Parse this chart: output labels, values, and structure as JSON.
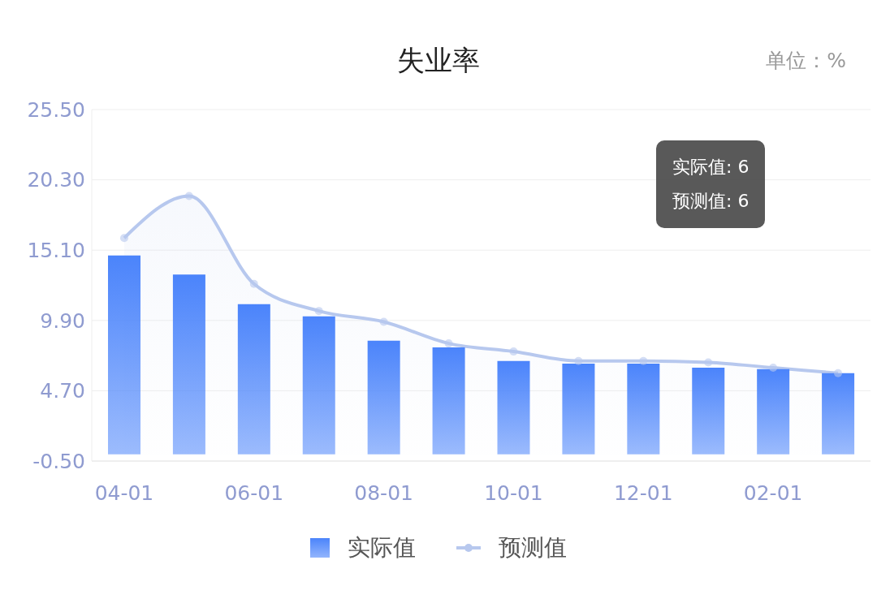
{
  "chart_data": {
    "type": "bar",
    "title": "失业率",
    "categories": [
      "04-01",
      null,
      "06-01",
      null,
      "08-01",
      null,
      "10-01",
      null,
      "12-01",
      null,
      "02-01",
      null
    ],
    "series": [
      {
        "name": "实际值",
        "color": "#4b84fb",
        "values": [
          14.7,
          13.3,
          11.1,
          10.2,
          8.4,
          7.9,
          6.9,
          6.7,
          6.7,
          6.4,
          6.3,
          6
        ]
      },
      {
        "name": "预测值",
        "type": "area",
        "color": "#b7c8ee",
        "values": [
          16.0,
          19.1,
          12.6,
          10.6,
          9.8,
          8.2,
          7.6,
          6.9,
          6.9,
          6.8,
          6.4,
          6
        ]
      }
    ],
    "ylim": [
      -0.5,
      25.5
    ],
    "yticks": [
      {
        "value": -0.5,
        "label": "-0.50"
      },
      {
        "value": 4.7,
        "label": "4.70"
      },
      {
        "value": 9.9,
        "label": "9.90"
      },
      {
        "value": 15.1,
        "label": "15.10"
      },
      {
        "value": 20.3,
        "label": "20.30"
      },
      {
        "value": 25.5,
        "label": "25.50"
      }
    ],
    "grid": "y",
    "legend": "bottom",
    "marker": "circle",
    "line_style": "solid",
    "annotations": [
      "单位：%",
      "实际值: 6",
      "预测值: 6"
    ]
  }
}
